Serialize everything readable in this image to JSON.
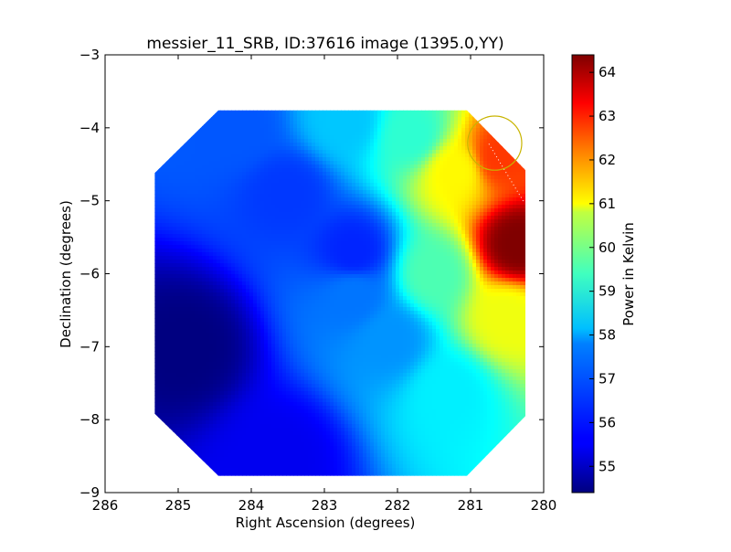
{
  "chart_data": {
    "type": "heatmap",
    "title": "messier_11_SRB, ID:37616 image (1395.0,YY)",
    "xlabel": "Right Ascension (degrees)",
    "ylabel": "Declination (degrees)",
    "xlim": [
      286,
      280
    ],
    "ylim": [
      -9,
      -3
    ],
    "xticks": [
      286,
      285,
      284,
      283,
      282,
      281,
      280
    ],
    "yticks": [
      -3,
      -4,
      -5,
      -6,
      -7,
      -8,
      -9
    ],
    "grid": false,
    "colorbar": {
      "label": "Power in Kelvin",
      "range": [
        54.4,
        64.4
      ],
      "ticks": [
        55,
        56,
        57,
        58,
        59,
        60,
        61,
        62,
        63,
        64
      ],
      "colormap": "jet"
    },
    "image_extent": {
      "ra": [
        285.32,
        280.25
      ],
      "dec": [
        -8.77,
        -3.76
      ]
    },
    "octagon_corners": [
      [
        284.45,
        -3.76
      ],
      [
        281.05,
        -3.76
      ],
      [
        280.25,
        -4.58
      ],
      [
        280.25,
        -7.95
      ],
      [
        281.05,
        -8.77
      ],
      [
        284.45,
        -8.77
      ],
      [
        285.32,
        -7.92
      ],
      [
        285.32,
        -4.62
      ]
    ],
    "field_values": [
      {
        "ra": 284.9,
        "dec": -7.0,
        "kelvin": 54.4
      },
      {
        "ra": 283.6,
        "dec": -8.5,
        "kelvin": 55.5
      },
      {
        "ra": 283.5,
        "dec": -4.9,
        "kelvin": 56.2
      },
      {
        "ra": 282.6,
        "dec": -5.7,
        "kelvin": 56.0
      },
      {
        "ra": 282.6,
        "dec": -6.3,
        "kelvin": 56.8
      },
      {
        "ra": 282.1,
        "dec": -6.9,
        "kelvin": 57.1
      },
      {
        "ra": 284.2,
        "dec": -4.0,
        "kelvin": 56.5
      },
      {
        "ra": 282.7,
        "dec": -3.9,
        "kelvin": 57.6
      },
      {
        "ra": 281.8,
        "dec": -4.1,
        "kelvin": 58.6
      },
      {
        "ra": 281.5,
        "dec": -6.0,
        "kelvin": 58.9
      },
      {
        "ra": 281.3,
        "dec": -7.6,
        "kelvin": 58.0
      },
      {
        "ra": 281.2,
        "dec": -4.6,
        "kelvin": 60.7
      },
      {
        "ra": 280.6,
        "dec": -4.4,
        "kelvin": 62.6
      },
      {
        "ra": 280.35,
        "dec": -5.6,
        "kelvin": 64.4
      },
      {
        "ra": 280.5,
        "dec": -6.6,
        "kelvin": 60.5
      }
    ],
    "annotation_circle": {
      "ra": 280.67,
      "dec": -4.21,
      "radius_deg": 0.37,
      "color": "#c8b400"
    },
    "dotted_trace": {
      "from": [
        280.75,
        -4.22
      ],
      "to": [
        280.27,
        -5.02
      ],
      "color": "#ffffff"
    }
  }
}
